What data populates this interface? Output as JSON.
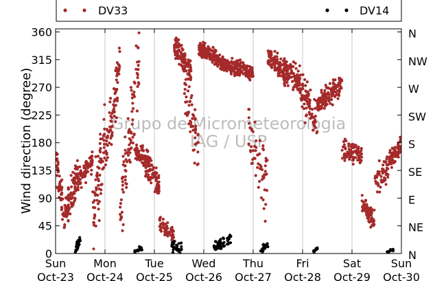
{
  "colors": {
    "dv33": "#a52a2a",
    "dv14": "#000000",
    "grid": "#c8c8c8",
    "watermark": "#bdbdbd"
  },
  "watermark": [
    "Grupo de Micrometeorologia",
    "IAG / USP"
  ],
  "chart_data": {
    "type": "scatter",
    "ylabel": "Wind direction (degree)",
    "xlabel": "",
    "xlim": [
      "2011-10-23 00:00",
      "2011-10-30 00:00"
    ],
    "ylim": [
      0,
      365
    ],
    "yticks": [
      0,
      45,
      90,
      135,
      180,
      225,
      270,
      315,
      360
    ],
    "ytick_labels": [
      "0",
      "45",
      "90",
      "135",
      "180",
      "225",
      "270",
      "315",
      "360"
    ],
    "y2ticks": [
      0,
      45,
      90,
      135,
      180,
      225,
      270,
      315,
      360
    ],
    "y2tick_labels": [
      "N",
      "NE",
      "E",
      "SE",
      "S",
      "SW",
      "W",
      "NW",
      "N"
    ],
    "xtick_labels": [
      {
        "day": "Sun",
        "date": "Oct-23"
      },
      {
        "day": "Mon",
        "date": "Oct-24"
      },
      {
        "day": "Tue",
        "date": "Oct-25"
      },
      {
        "day": "Wed",
        "date": "Oct-26"
      },
      {
        "day": "Thu",
        "date": "Oct-27"
      },
      {
        "day": "Fri",
        "date": "Oct-28"
      },
      {
        "day": "Sat",
        "date": "Oct-29"
      },
      {
        "day": "Sun",
        "date": "Oct-30"
      }
    ],
    "grid": true,
    "legend": {
      "placement": "top, outside plot"
    },
    "series": [
      {
        "name": "DV33",
        "color": "#a52a2a",
        "segments": [
          {
            "x0": 0.0,
            "x1": 0.18,
            "y0": 150,
            "y1": 60,
            "spread": 45,
            "n": 60
          },
          {
            "x0": 0.18,
            "x1": 0.45,
            "y0": 60,
            "y1": 130,
            "spread": 40,
            "n": 90
          },
          {
            "x0": 0.45,
            "x1": 0.75,
            "y0": 120,
            "y1": 150,
            "spread": 25,
            "n": 80
          },
          {
            "x0": 0.75,
            "x1": 1.0,
            "y0": 50,
            "y1": 200,
            "spread": 90,
            "n": 70
          },
          {
            "x0": 1.0,
            "x1": 1.3,
            "y0": 160,
            "y1": 300,
            "spread": 60,
            "n": 80
          },
          {
            "x0": 1.3,
            "x1": 1.7,
            "y0": 60,
            "y1": 320,
            "spread": 80,
            "n": 90
          },
          {
            "x0": 1.6,
            "x1": 1.95,
            "y0": 165,
            "y1": 150,
            "spread": 20,
            "n": 80
          },
          {
            "x0": 1.8,
            "x1": 2.1,
            "y0": 140,
            "y1": 110,
            "spread": 30,
            "n": 70
          },
          {
            "x0": 2.1,
            "x1": 2.4,
            "y0": 45,
            "y1": 30,
            "spread": 20,
            "n": 60
          },
          {
            "x0": 2.4,
            "x1": 2.75,
            "y0": 340,
            "y1": 290,
            "spread": 30,
            "n": 110
          },
          {
            "x0": 2.6,
            "x1": 2.9,
            "y0": 280,
            "y1": 170,
            "spread": 80,
            "n": 60
          },
          {
            "x0": 2.9,
            "x1": 3.45,
            "y0": 335,
            "y1": 305,
            "spread": 18,
            "n": 200
          },
          {
            "x0": 3.45,
            "x1": 4.0,
            "y0": 305,
            "y1": 295,
            "spread": 20,
            "n": 180
          },
          {
            "x0": 3.9,
            "x1": 4.3,
            "y0": 200,
            "y1": 110,
            "spread": 90,
            "n": 60
          },
          {
            "x0": 4.3,
            "x1": 4.7,
            "y0": 320,
            "y1": 290,
            "spread": 25,
            "n": 120
          },
          {
            "x0": 4.6,
            "x1": 4.95,
            "y0": 300,
            "y1": 280,
            "spread": 30,
            "n": 100
          },
          {
            "x0": 4.95,
            "x1": 5.3,
            "y0": 260,
            "y1": 220,
            "spread": 50,
            "n": 80
          },
          {
            "x0": 5.3,
            "x1": 5.8,
            "y0": 245,
            "y1": 275,
            "spread": 25,
            "n": 130
          },
          {
            "x0": 5.8,
            "x1": 6.2,
            "y0": 170,
            "y1": 160,
            "spread": 25,
            "n": 90
          },
          {
            "x0": 6.2,
            "x1": 6.45,
            "y0": 75,
            "y1": 55,
            "spread": 25,
            "n": 70
          },
          {
            "x0": 6.45,
            "x1": 6.75,
            "y0": 110,
            "y1": 140,
            "spread": 35,
            "n": 50
          },
          {
            "x0": 6.75,
            "x1": 7.0,
            "y0": 150,
            "y1": 175,
            "spread": 20,
            "n": 80
          }
        ]
      },
      {
        "name": "DV14",
        "color": "#000000",
        "segments": [
          {
            "x0": 0.4,
            "x1": 0.5,
            "y0": 5,
            "y1": 25,
            "spread": 15,
            "n": 25
          },
          {
            "x0": 1.6,
            "x1": 1.75,
            "y0": 2,
            "y1": 10,
            "spread": 8,
            "n": 20
          },
          {
            "x0": 2.35,
            "x1": 2.55,
            "y0": 15,
            "y1": 5,
            "spread": 15,
            "n": 30
          },
          {
            "x0": 3.2,
            "x1": 3.55,
            "y0": 10,
            "y1": 25,
            "spread": 12,
            "n": 50
          },
          {
            "x0": 4.15,
            "x1": 4.3,
            "y0": 5,
            "y1": 15,
            "spread": 8,
            "n": 15
          },
          {
            "x0": 5.2,
            "x1": 5.3,
            "y0": 2,
            "y1": 8,
            "spread": 4,
            "n": 8
          },
          {
            "x0": 6.7,
            "x1": 6.85,
            "y0": 2,
            "y1": 6,
            "spread": 4,
            "n": 12
          }
        ]
      }
    ]
  }
}
